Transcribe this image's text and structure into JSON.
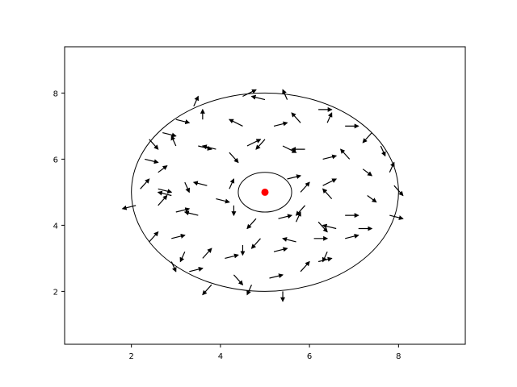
{
  "chart_data": {
    "type": "quiver",
    "title": "",
    "xlabel": "",
    "ylabel": "",
    "xlim": [
      0.5,
      9.5
    ],
    "ylim": [
      0.4,
      9.4
    ],
    "xticks": [
      2,
      4,
      6,
      8
    ],
    "yticks": [
      2,
      4,
      6,
      8
    ],
    "grid": false,
    "legend": "none",
    "colors": {
      "arrows": "#000000",
      "center": "#ff0000",
      "outline": "#000000"
    },
    "center_point": {
      "x": 5.0,
      "y": 5.0
    },
    "outer_ring": {
      "cx": 5.0,
      "cy": 5.0,
      "r": 3.0
    },
    "inner_ring": {
      "cx": 5.0,
      "cy": 5.0,
      "r": 0.6
    },
    "arrows": [
      {
        "x": 4.5,
        "y": 7.9,
        "u": 0.3,
        "v": 0.2
      },
      {
        "x": 5.0,
        "y": 7.8,
        "u": -0.3,
        "v": 0.1
      },
      {
        "x": 5.5,
        "y": 7.8,
        "u": -0.1,
        "v": 0.3
      },
      {
        "x": 6.2,
        "y": 7.5,
        "u": 0.3,
        "v": 0.0
      },
      {
        "x": 3.4,
        "y": 7.6,
        "u": 0.1,
        "v": 0.3
      },
      {
        "x": 3.0,
        "y": 7.2,
        "u": 0.3,
        "v": -0.1
      },
      {
        "x": 2.4,
        "y": 6.6,
        "u": 0.2,
        "v": -0.3
      },
      {
        "x": 2.7,
        "y": 6.8,
        "u": 0.3,
        "v": -0.1
      },
      {
        "x": 3.6,
        "y": 7.2,
        "u": 0.0,
        "v": 0.3
      },
      {
        "x": 4.5,
        "y": 7.0,
        "u": -0.3,
        "v": 0.2
      },
      {
        "x": 5.2,
        "y": 7.0,
        "u": 0.3,
        "v": 0.1
      },
      {
        "x": 5.8,
        "y": 7.1,
        "u": -0.2,
        "v": 0.3
      },
      {
        "x": 6.4,
        "y": 7.1,
        "u": 0.1,
        "v": 0.3
      },
      {
        "x": 6.8,
        "y": 7.0,
        "u": 0.3,
        "v": 0.0
      },
      {
        "x": 7.4,
        "y": 6.8,
        "u": -0.2,
        "v": -0.3
      },
      {
        "x": 7.6,
        "y": 6.4,
        "u": 0.1,
        "v": -0.3
      },
      {
        "x": 2.3,
        "y": 6.0,
        "u": 0.3,
        "v": -0.1
      },
      {
        "x": 2.6,
        "y": 5.6,
        "u": 0.2,
        "v": 0.2
      },
      {
        "x": 3.0,
        "y": 6.4,
        "u": -0.1,
        "v": 0.3
      },
      {
        "x": 3.5,
        "y": 6.4,
        "u": 0.3,
        "v": -0.1
      },
      {
        "x": 3.9,
        "y": 6.3,
        "u": -0.3,
        "v": 0.1
      },
      {
        "x": 4.2,
        "y": 6.2,
        "u": 0.2,
        "v": -0.3
      },
      {
        "x": 4.6,
        "y": 6.4,
        "u": 0.3,
        "v": 0.2
      },
      {
        "x": 5.0,
        "y": 6.6,
        "u": -0.2,
        "v": -0.3
      },
      {
        "x": 5.4,
        "y": 6.4,
        "u": 0.3,
        "v": -0.2
      },
      {
        "x": 5.9,
        "y": 6.3,
        "u": -0.3,
        "v": 0.0
      },
      {
        "x": 6.3,
        "y": 6.0,
        "u": 0.3,
        "v": 0.1
      },
      {
        "x": 6.9,
        "y": 6.0,
        "u": -0.2,
        "v": 0.3
      },
      {
        "x": 7.2,
        "y": 5.7,
        "u": 0.2,
        "v": -0.2
      },
      {
        "x": 7.8,
        "y": 5.6,
        "u": 0.1,
        "v": 0.3
      },
      {
        "x": 7.9,
        "y": 5.2,
        "u": 0.2,
        "v": -0.3
      },
      {
        "x": 2.2,
        "y": 5.1,
        "u": 0.2,
        "v": 0.3
      },
      {
        "x": 2.6,
        "y": 5.1,
        "u": 0.3,
        "v": -0.1
      },
      {
        "x": 2.9,
        "y": 4.9,
        "u": -0.3,
        "v": 0.1
      },
      {
        "x": 3.2,
        "y": 5.3,
        "u": 0.1,
        "v": -0.3
      },
      {
        "x": 3.7,
        "y": 5.2,
        "u": -0.3,
        "v": 0.1
      },
      {
        "x": 3.9,
        "y": 4.8,
        "u": 0.3,
        "v": -0.1
      },
      {
        "x": 4.2,
        "y": 5.1,
        "u": 0.1,
        "v": 0.3
      },
      {
        "x": 4.3,
        "y": 4.6,
        "u": 0.0,
        "v": -0.3
      },
      {
        "x": 5.5,
        "y": 5.4,
        "u": 0.3,
        "v": 0.1
      },
      {
        "x": 5.8,
        "y": 5.0,
        "u": 0.2,
        "v": 0.3
      },
      {
        "x": 5.9,
        "y": 4.6,
        "u": -0.2,
        "v": -0.3
      },
      {
        "x": 6.3,
        "y": 5.2,
        "u": 0.3,
        "v": 0.2
      },
      {
        "x": 6.5,
        "y": 4.8,
        "u": -0.2,
        "v": 0.3
      },
      {
        "x": 6.8,
        "y": 4.3,
        "u": 0.3,
        "v": 0.0
      },
      {
        "x": 7.3,
        "y": 4.9,
        "u": 0.2,
        "v": -0.2
      },
      {
        "x": 7.8,
        "y": 4.3,
        "u": 0.3,
        "v": -0.1
      },
      {
        "x": 2.1,
        "y": 4.6,
        "u": -0.3,
        "v": -0.1
      },
      {
        "x": 2.6,
        "y": 4.6,
        "u": 0.2,
        "v": 0.3
      },
      {
        "x": 3.0,
        "y": 4.4,
        "u": 0.3,
        "v": 0.1
      },
      {
        "x": 3.5,
        "y": 4.3,
        "u": -0.3,
        "v": 0.1
      },
      {
        "x": 4.8,
        "y": 4.2,
        "u": -0.2,
        "v": -0.3
      },
      {
        "x": 5.3,
        "y": 4.2,
        "u": 0.3,
        "v": 0.1
      },
      {
        "x": 5.7,
        "y": 4.1,
        "u": 0.1,
        "v": 0.3
      },
      {
        "x": 6.2,
        "y": 4.1,
        "u": 0.2,
        "v": -0.3
      },
      {
        "x": 6.6,
        "y": 3.9,
        "u": -0.3,
        "v": 0.1
      },
      {
        "x": 7.1,
        "y": 3.9,
        "u": 0.3,
        "v": 0.0
      },
      {
        "x": 2.4,
        "y": 3.5,
        "u": 0.2,
        "v": 0.3
      },
      {
        "x": 2.9,
        "y": 3.6,
        "u": 0.3,
        "v": 0.1
      },
      {
        "x": 3.2,
        "y": 3.2,
        "u": -0.1,
        "v": -0.3
      },
      {
        "x": 3.6,
        "y": 3.0,
        "u": 0.2,
        "v": 0.3
      },
      {
        "x": 4.1,
        "y": 3.0,
        "u": 0.3,
        "v": 0.1
      },
      {
        "x": 4.5,
        "y": 3.4,
        "u": 0.0,
        "v": -0.3
      },
      {
        "x": 4.9,
        "y": 3.6,
        "u": -0.2,
        "v": -0.3
      },
      {
        "x": 5.2,
        "y": 3.2,
        "u": 0.3,
        "v": 0.1
      },
      {
        "x": 5.7,
        "y": 3.5,
        "u": -0.3,
        "v": 0.1
      },
      {
        "x": 6.1,
        "y": 3.6,
        "u": 0.3,
        "v": 0.0
      },
      {
        "x": 6.4,
        "y": 3.2,
        "u": -0.1,
        "v": -0.3
      },
      {
        "x": 6.8,
        "y": 3.6,
        "u": 0.3,
        "v": 0.1
      },
      {
        "x": 2.9,
        "y": 2.9,
        "u": 0.1,
        "v": -0.3
      },
      {
        "x": 3.3,
        "y": 2.6,
        "u": 0.3,
        "v": 0.1
      },
      {
        "x": 3.8,
        "y": 2.2,
        "u": -0.2,
        "v": -0.3
      },
      {
        "x": 4.3,
        "y": 2.5,
        "u": 0.2,
        "v": -0.3
      },
      {
        "x": 4.7,
        "y": 2.2,
        "u": -0.1,
        "v": -0.3
      },
      {
        "x": 5.1,
        "y": 2.4,
        "u": 0.3,
        "v": 0.1
      },
      {
        "x": 5.4,
        "y": 2.0,
        "u": 0.0,
        "v": -0.3
      },
      {
        "x": 5.8,
        "y": 2.6,
        "u": 0.2,
        "v": 0.3
      },
      {
        "x": 6.2,
        "y": 2.9,
        "u": 0.3,
        "v": 0.1
      }
    ]
  }
}
